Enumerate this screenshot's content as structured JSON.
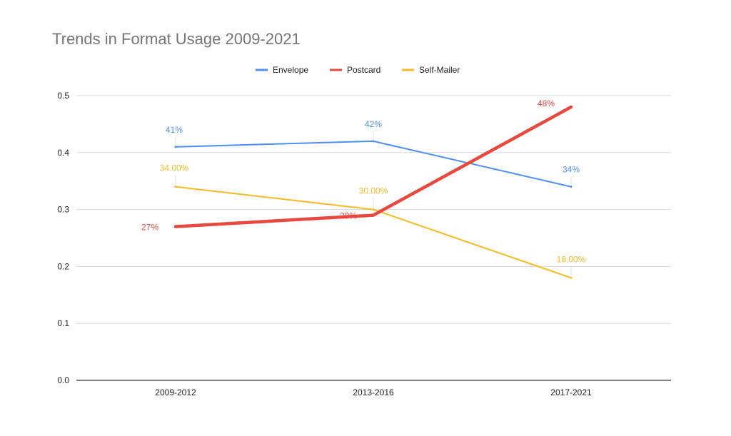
{
  "chart_data": {
    "type": "line",
    "title": "Trends in Format Usage 2009-2021",
    "xlabel": "",
    "ylabel": "",
    "categories": [
      "2009-2012",
      "2013-2016",
      "2017-2021"
    ],
    "ylim": [
      0,
      0.5
    ],
    "yticks": [
      "0.0",
      "0.1",
      "0.2",
      "0.3",
      "0.4",
      "0.5"
    ],
    "grid": true,
    "legend_position": "top",
    "series": [
      {
        "name": "Envelope",
        "color": "#4f8ff2",
        "values": [
          0.41,
          0.42,
          0.34
        ],
        "labels": [
          "41%",
          "42%",
          "34%"
        ]
      },
      {
        "name": "Postcard",
        "color": "#e8483d",
        "values": [
          0.27,
          0.29,
          0.48
        ],
        "labels": [
          "27%",
          "29%",
          "48%"
        ]
      },
      {
        "name": "Self-Mailer",
        "color": "#f7b924",
        "values": [
          0.34,
          0.3,
          0.18
        ],
        "labels": [
          "34.00%",
          "30.00%",
          "18.00%"
        ]
      }
    ]
  }
}
